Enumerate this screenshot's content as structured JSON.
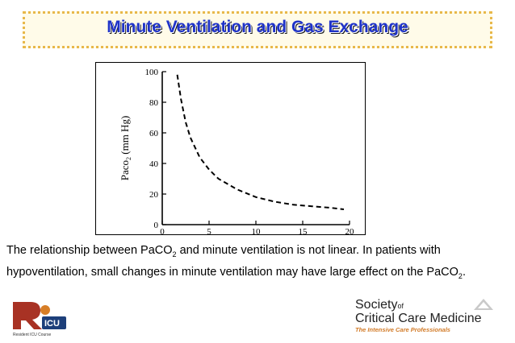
{
  "slide": {
    "title": "Minute Ventilation and Gas Exchange",
    "caption_parts": {
      "p1": "The relationship between PaCO",
      "sub1": "2",
      "p2": " and minute ventilation is not linear. In patients with hypoventilation, small changes in minute ventilation may have large effect on the PaCO",
      "sub2": "2",
      "p3": "."
    }
  },
  "chart_data": {
    "type": "line",
    "ylabel_main": "Paco",
    "ylabel_sub": "2",
    "ylabel_unit": " (mm Hg)",
    "xlabel": "",
    "xlim": [
      0,
      20
    ],
    "ylim": [
      0,
      100
    ],
    "xticks": [
      0,
      5,
      10,
      15,
      20
    ],
    "yticks": [
      0,
      20,
      40,
      60,
      80,
      100
    ],
    "series": [
      {
        "style": "dashed",
        "x": [
          1.6,
          2,
          2.5,
          3,
          4,
          5,
          6,
          8,
          10,
          12,
          14,
          16,
          18,
          19.4
        ],
        "y": [
          98,
          82,
          67,
          57,
          44,
          36,
          30,
          23,
          18,
          15,
          13,
          12,
          11,
          10
        ]
      }
    ],
    "grid": false,
    "legend": "none"
  },
  "footer": {
    "ricu_logo_text": "RICU",
    "ricu_tagline": "Resident ICU Course",
    "sccm_line1": "Society",
    "sccm_of": "of",
    "sccm_line2": "Critical Care Medicine",
    "sccm_tagline": "The Intensive Care Professionals"
  }
}
